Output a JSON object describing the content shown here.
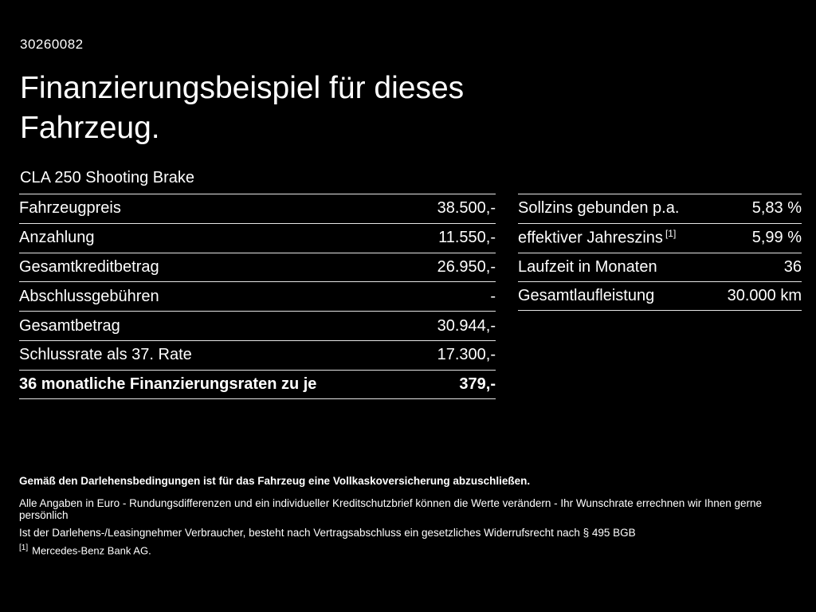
{
  "page": {
    "vehicle_id": "30260082",
    "title": "Finanzierungsbeispiel für dieses Fahrzeug.",
    "model": "CLA 250 Shooting Brake"
  },
  "left_table": {
    "rows": [
      {
        "label": "Fahrzeugpreis",
        "value": "38.500,-"
      },
      {
        "label": "Anzahlung",
        "value": "11.550,-"
      },
      {
        "label": "Gesamtkreditbetrag",
        "value": "26.950,-"
      },
      {
        "label": "Abschlussgebühren",
        "value": "-"
      },
      {
        "label": "Gesamtbetrag",
        "value": "30.944,-"
      },
      {
        "label": "Schlussrate als 37. Rate",
        "value": "17.300,-"
      },
      {
        "label": "36 monatliche Finanzierungsraten zu je",
        "value": "379,-"
      }
    ]
  },
  "right_table": {
    "rows": [
      {
        "label": "Sollzins gebunden p.a.",
        "value": "5,83 %"
      },
      {
        "label": "effektiver Jahreszins",
        "sup": "[1]",
        "value": "5,99 %"
      },
      {
        "label": "Laufzeit in Monaten",
        "value": "36"
      },
      {
        "label": "Gesamtlaufleistung",
        "value": "30.000 km"
      }
    ]
  },
  "footnotes": {
    "insurance_note": "Gemäß den Darlehensbedingungen ist für das Fahrzeug eine Vollkaskoversicherung abzuschließen.",
    "general_note": "Alle Angaben in Euro - Rundungsdifferenzen und ein individueller Kreditschutzbrief können die Werte verändern - Ihr Wunschrate errechnen wir Ihnen gerne persönlich",
    "legal_note": "Ist der Darlehens-/Leasingnehmer Verbraucher, besteht nach Vertragsabschluss ein gesetzliches Widerrufsrecht nach § 495 BGB",
    "ref_marker": "[1]",
    "ref_text": "Mercedes-Benz Bank AG."
  }
}
